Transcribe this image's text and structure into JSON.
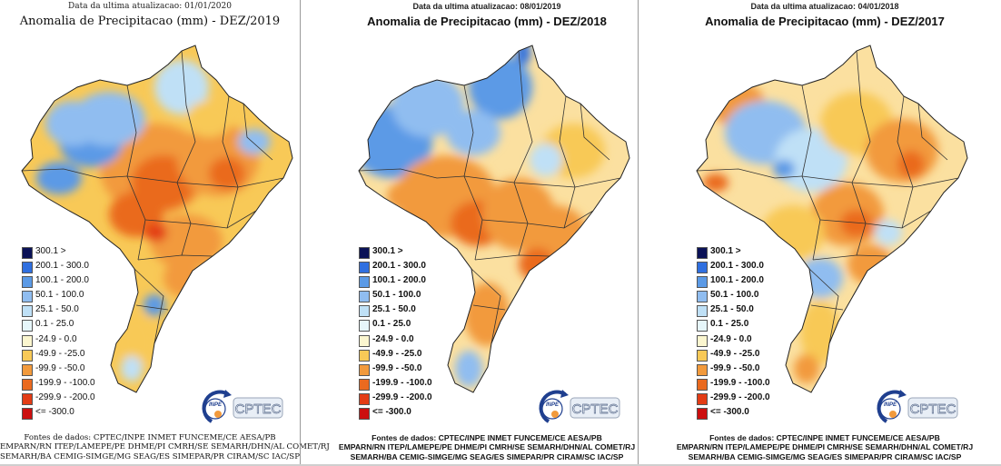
{
  "panels": [
    {
      "date_label": "Data da ultima atualizacao: 01/01/2020",
      "title": "Anomalia de Precipitacao (mm) - DEZ/2019",
      "font_style": "serif",
      "source_lines": [
        "Fontes de dados: CPTEC/INPE INMET FUNCEME/CE AESA/PB",
        "EMPARN/RN ITEP/LAMEPE/PE DHME/PI CMRH/SE SEMARH/DHN/AL COMET/RJ",
        "SEMARH/BA CEMIG-SIMGE/MG SEAG/ES SIMEPAR/PR CIRAM/SC IAC/SP"
      ],
      "dominant_anomaly": "negative",
      "logo_text": "CPTEC",
      "logo_badge": "INPE"
    },
    {
      "date_label": "Data da ultima atualizacao: 08/01/2019",
      "title": "Anomalia de Precipitacao (mm) - DEZ/2018",
      "font_style": "bold",
      "source_lines": [
        "Fontes de dados: CPTEC/INPE INMET FUNCEME/CE AESA/PB",
        "EMPARN/RN ITEP/LAMEPE/PE DHME/PI CMRH/SE SEMARH/DHN/AL COMET/RJ",
        "SEMARH/BA CEMIG-SIMGE/MG SEAG/ES SIMEPAR/PR CIRAM/SC IAC/SP"
      ],
      "dominant_anomaly": "mixed-north-wet",
      "logo_text": "CPTEC",
      "logo_badge": "INPE"
    },
    {
      "date_label": "Data da ultima atualizacao: 04/01/2018",
      "title": "Anomalia de Precipitacao (mm) - DEZ/2017",
      "font_style": "bold",
      "source_lines": [
        "Fontes de dados: CPTEC/INPE INMET FUNCEME/CE AESA/PB",
        "EMPARN/RN ITEP/LAMEPE/PE DHME/PI CMRH/SE SEMARH/DHN/AL COMET/RJ",
        "SEMARH/BA CEMIG-SIMGE/MG SEAG/ES SIMEPAR/PR CIRAM/SC IAC/SP"
      ],
      "dominant_anomaly": "mixed",
      "logo_text": "CPTEC",
      "logo_badge": "INPE"
    }
  ],
  "legend": [
    {
      "label": "300.1 >",
      "color": "#0b1257"
    },
    {
      "label": "200.1 - 300.0",
      "color": "#2f6fe0"
    },
    {
      "label": "100.1 - 200.0",
      "color": "#5b9ae6"
    },
    {
      "label": "50.1 - 100.0",
      "color": "#90bdf0"
    },
    {
      "label": "25.1 - 50.0",
      "color": "#bfe0f6"
    },
    {
      "label": "0.1 - 25.0",
      "color": "#e6f6fa"
    },
    {
      "label": "-24.9 - 0.0",
      "color": "#fbf6cf"
    },
    {
      "label": "-49.9 - -25.0",
      "color": "#f8c957"
    },
    {
      "label": "-99.9 - -50.0",
      "color": "#f29a3c"
    },
    {
      "label": "-199.9 - -100.0",
      "color": "#ea6a1f"
    },
    {
      "label": "-299.9 - -200.0",
      "color": "#e33c15"
    },
    {
      "label": "<= -300.0",
      "color": "#cc0f0f"
    }
  ]
}
